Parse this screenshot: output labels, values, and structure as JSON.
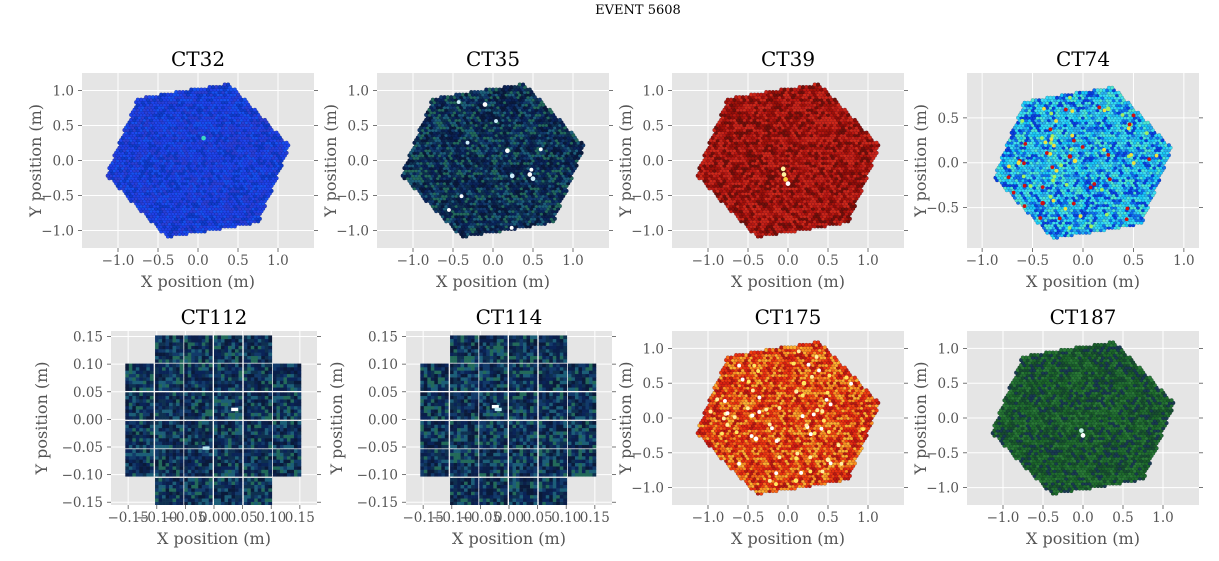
{
  "figure": {
    "title": "EVENT 5608"
  },
  "chart_data": [
    {
      "type": "heatmap",
      "title": "CT32",
      "camera": "hexagon",
      "colormap": "blue",
      "colors": [
        "#1e40e6",
        "#1650f0",
        "#2a3fd6",
        "#1e46ee",
        "#0f3ccc"
      ],
      "hot_colors": [
        "#3ad6c0"
      ],
      "hot_pixels": [
        [
          0.07,
          0.32
        ]
      ],
      "xlabel": "X position (m)",
      "ylabel": "Y position (m)",
      "xlim": [
        -1.45,
        1.45
      ],
      "ylim": [
        -1.25,
        1.25
      ],
      "xticks": [
        -1.0,
        -0.5,
        0.0,
        0.5,
        1.0
      ],
      "xtick_labels": [
        "−1.0",
        "−0.5",
        "0.0",
        "0.5",
        "1.0"
      ],
      "yticks": [
        -1.0,
        -0.5,
        0.0,
        0.5,
        1.0
      ],
      "ytick_labels": [
        "−1.0",
        "−0.5",
        "0.0",
        "0.5",
        "1.0"
      ],
      "grid": true
    },
    {
      "type": "heatmap",
      "title": "CT35",
      "camera": "hexagon",
      "colormap": "ocean",
      "colors": [
        "#0a2458",
        "#0b1f4a",
        "#123a6a",
        "#1c5e78",
        "#0e3050",
        "#236a5a",
        "#0a1a3a"
      ],
      "hot_colors": [
        "#ffffff",
        "#cfeffa"
      ],
      "hot_pixels": [
        [
          0.18,
          0.14
        ],
        [
          0.24,
          -0.22
        ],
        [
          0.46,
          -0.2
        ],
        [
          0.5,
          -0.26
        ],
        [
          -0.1,
          0.8
        ]
      ],
      "xlabel": "X position (m)",
      "ylabel": "Y position (m)",
      "xlim": [
        -1.45,
        1.45
      ],
      "ylim": [
        -1.25,
        1.25
      ],
      "xticks": [
        -1.0,
        -0.5,
        0.0,
        0.5,
        1.0
      ],
      "xtick_labels": [
        "−1.0",
        "−0.5",
        "0.0",
        "0.5",
        "1.0"
      ],
      "yticks": [
        -1.0,
        -0.5,
        0.0,
        0.5,
        1.0
      ],
      "ytick_labels": [
        "−1.0",
        "−0.5",
        "0.0",
        "0.5",
        "1.0"
      ],
      "grid": true
    },
    {
      "type": "heatmap",
      "title": "CT39",
      "camera": "hexagon",
      "colormap": "hot",
      "colors": [
        "#b81810",
        "#a01208",
        "#c82418",
        "#8c0e08",
        "#d02818",
        "#701008"
      ],
      "hot_colors": [
        "#fff2a0",
        "#ffd040",
        "#ffffff"
      ],
      "hot_pixels": [
        [
          -0.05,
          -0.2
        ],
        [
          -0.03,
          -0.27
        ],
        [
          0.0,
          -0.33
        ],
        [
          -0.06,
          -0.12
        ]
      ],
      "xlabel": "X position (m)",
      "ylabel": "Y position (m)",
      "xlim": [
        -1.45,
        1.45
      ],
      "ylim": [
        -1.25,
        1.25
      ],
      "xticks": [
        -1.0,
        -0.5,
        0.0,
        0.5,
        1.0
      ],
      "xtick_labels": [
        "−1.0",
        "−0.5",
        "0.0",
        "0.5",
        "1.0"
      ],
      "yticks": [
        -1.0,
        -0.5,
        0.0,
        0.5,
        1.0
      ],
      "ytick_labels": [
        "−1.0",
        "−0.5",
        "0.0",
        "0.5",
        "1.0"
      ],
      "grid": true
    },
    {
      "type": "heatmap",
      "title": "CT74",
      "camera": "hexagon",
      "colormap": "jet",
      "colors": [
        "#18c8f8",
        "#2ab0f0",
        "#40e0f0",
        "#1070f0",
        "#50e8d0",
        "#0a40e0",
        "#30d8f8"
      ],
      "hot_colors": [
        "#d01010",
        "#f0e040",
        "#a0f060"
      ],
      "hot_pixels": [
        [
          -0.13,
          0.07
        ],
        [
          -0.08,
          0.02
        ],
        [
          0.25,
          0.6
        ],
        [
          -0.4,
          -0.45
        ]
      ],
      "xlabel": "X position (m)",
      "ylabel": "Y position (m)",
      "xlim": [
        -1.15,
        1.15
      ],
      "ylim": [
        -0.95,
        1.0
      ],
      "xticks": [
        -1.0,
        -0.5,
        0.0,
        0.5,
        1.0
      ],
      "xtick_labels": [
        "−1.0",
        "−0.5",
        "0.0",
        "0.5",
        "1.0"
      ],
      "yticks": [
        -0.5,
        0.0,
        0.5
      ],
      "ytick_labels": [
        "−0.5",
        "0.0",
        "0.5"
      ],
      "grid": true
    },
    {
      "type": "heatmap",
      "title": "CT112",
      "camera": "square-cross",
      "colormap": "ocean",
      "colors": [
        "#0a2458",
        "#0b1f4a",
        "#123a6a",
        "#1c5e78",
        "#0e3050",
        "#236a5a",
        "#0a1a3a"
      ],
      "hot_colors": [
        "#ffffff",
        "#b8e8f0"
      ],
      "hot_pixels": [
        [
          0.03,
          0.015
        ],
        [
          -0.02,
          -0.055
        ]
      ],
      "xlabel": "X position (m)",
      "ylabel": "Y position (m)",
      "xlim": [
        -0.18,
        0.18
      ],
      "ylim": [
        -0.155,
        0.16
      ],
      "xticks": [
        -0.15,
        -0.1,
        -0.05,
        0.0,
        0.05,
        0.1,
        0.15
      ],
      "xtick_labels": [
        "−0.15",
        "−0.10",
        "−0.05",
        "0.00",
        "0.05",
        "0.10",
        "0.15"
      ],
      "yticks": [
        -0.15,
        -0.1,
        -0.05,
        0.0,
        0.05,
        0.1,
        0.15
      ],
      "ytick_labels": [
        "−0.15",
        "−0.10",
        "−0.05",
        "0.00",
        "0.05",
        "0.10",
        "0.15"
      ],
      "grid": true
    },
    {
      "type": "heatmap",
      "title": "CT114",
      "camera": "square-cross",
      "colormap": "ocean",
      "colors": [
        "#0a2458",
        "#0b1f4a",
        "#123a6a",
        "#1c5e78",
        "#0e3050",
        "#236a5a",
        "#0a1a3a"
      ],
      "hot_colors": [
        "#ffffff",
        "#b8e8f0"
      ],
      "hot_pixels": [
        [
          -0.03,
          0.02
        ],
        [
          -0.025,
          0.015
        ]
      ],
      "xlabel": "X position (m)",
      "ylabel": "Y position (m)",
      "xlim": [
        -0.18,
        0.18
      ],
      "ylim": [
        -0.155,
        0.16
      ],
      "xticks": [
        -0.15,
        -0.1,
        -0.05,
        0.0,
        0.05,
        0.1,
        0.15
      ],
      "xtick_labels": [
        "−0.15",
        "−0.10",
        "−0.05",
        "0.00",
        "0.05",
        "0.10",
        "0.15"
      ],
      "yticks": [
        -0.15,
        -0.1,
        -0.05,
        0.0,
        0.05,
        0.1,
        0.15
      ],
      "ytick_labels": [
        "−0.15",
        "−0.10",
        "−0.05",
        "0.00",
        "0.05",
        "0.10",
        "0.15"
      ],
      "grid": true
    },
    {
      "type": "heatmap",
      "title": "CT175",
      "camera": "hexagon",
      "colormap": "hot",
      "colors": [
        "#f04010",
        "#e83010",
        "#f86818",
        "#d82010",
        "#fc9020",
        "#b81810",
        "#ffb030"
      ],
      "hot_colors": [
        "#ffe860",
        "#ffffff",
        "#fff0a0"
      ],
      "hot_pixels": [
        [
          0.2,
          0.5
        ],
        [
          -0.4,
          -0.3
        ],
        [
          0.5,
          -0.6
        ],
        [
          0.1,
          -0.9
        ]
      ],
      "xlabel": "X position (m)",
      "ylabel": "Y position (m)",
      "xlim": [
        -1.45,
        1.45
      ],
      "ylim": [
        -1.25,
        1.25
      ],
      "xticks": [
        -1.0,
        -0.5,
        0.0,
        0.5,
        1.0
      ],
      "xtick_labels": [
        "−1.0",
        "−0.5",
        "0.0",
        "0.5",
        "1.0"
      ],
      "yticks": [
        -1.0,
        -0.5,
        0.0,
        0.5,
        1.0
      ],
      "ytick_labels": [
        "−1.0",
        "−0.5",
        "0.0",
        "0.5",
        "1.0"
      ],
      "grid": true
    },
    {
      "type": "heatmap",
      "title": "CT187",
      "camera": "hexagon",
      "colormap": "green",
      "colors": [
        "#1e6a2a",
        "#226e30",
        "#1a5c28",
        "#2a7a34",
        "#184c30",
        "#1a3a50"
      ],
      "hot_colors": [
        "#ffffff",
        "#c0f0e0"
      ],
      "hot_pixels": [
        [
          0.0,
          -0.25
        ],
        [
          -0.02,
          -0.18
        ]
      ],
      "xlabel": "X position (m)",
      "ylabel": "Y position (m)",
      "xlim": [
        -1.45,
        1.45
      ],
      "ylim": [
        -1.25,
        1.25
      ],
      "xticks": [
        -1.0,
        -0.5,
        0.0,
        0.5,
        1.0
      ],
      "xtick_labels": [
        "−1.0",
        "−0.5",
        "0.0",
        "0.5",
        "1.0"
      ],
      "yticks": [
        -1.0,
        -0.5,
        0.0,
        0.5,
        1.0
      ],
      "ytick_labels": [
        "−1.0",
        "−0.5",
        "0.0",
        "0.5",
        "1.0"
      ],
      "grid": true
    }
  ]
}
